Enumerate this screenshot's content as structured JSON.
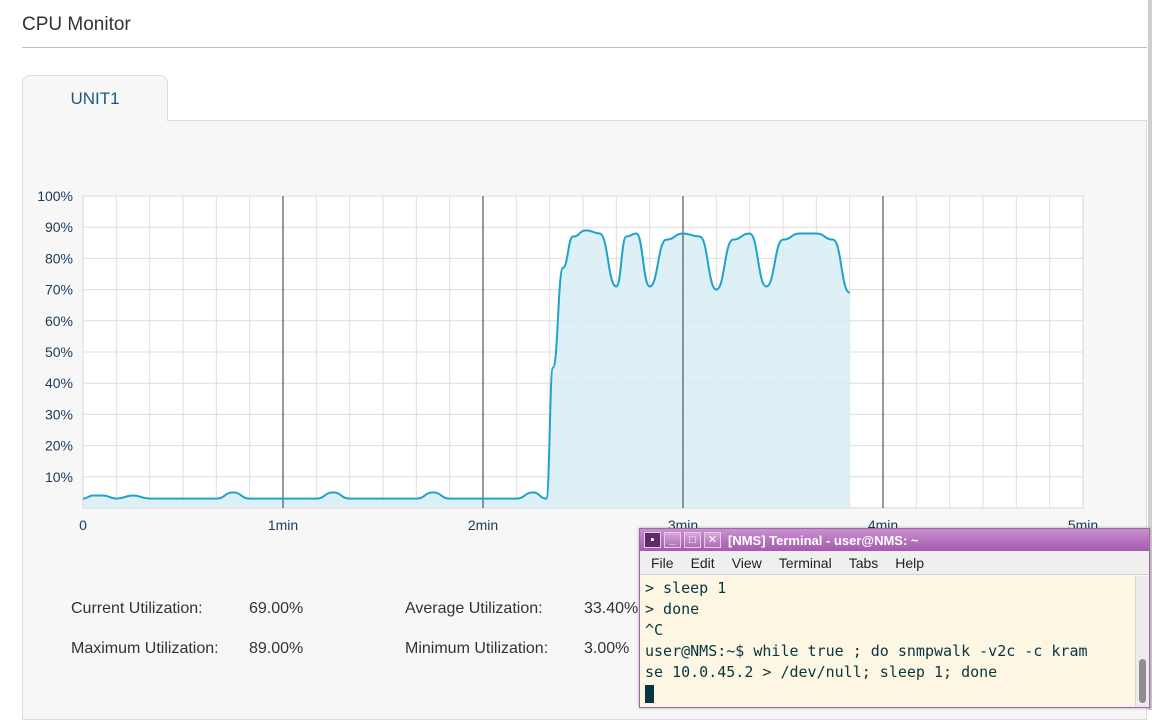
{
  "page": {
    "title": "CPU Monitor"
  },
  "tabs": [
    {
      "label": "UNIT1",
      "active": true
    }
  ],
  "chart_data": {
    "type": "area",
    "title": "",
    "xlabel": "",
    "ylabel": "",
    "x_unit": "seconds",
    "xlim": [
      0,
      300
    ],
    "ylim": [
      0,
      100
    ],
    "y_ticks": [
      "100%",
      "90%",
      "80%",
      "70%",
      "60%",
      "50%",
      "40%",
      "30%",
      "20%",
      "10%"
    ],
    "x_ticks": [
      "0",
      "1min",
      "2min",
      "3min",
      "4min",
      "5min"
    ],
    "grid": true,
    "color": "#1fa3c9",
    "fill": "#d6edf5",
    "x": [
      0,
      3,
      6,
      10,
      15,
      20,
      25,
      30,
      40,
      45,
      50,
      55,
      60,
      70,
      75,
      80,
      85,
      90,
      100,
      105,
      110,
      115,
      120,
      130,
      135,
      139,
      141,
      144,
      147,
      151,
      155,
      160,
      163,
      166,
      170,
      175,
      180,
      185,
      190,
      195,
      200,
      205,
      210,
      215,
      220,
      225,
      230
    ],
    "y": [
      3,
      4,
      4,
      3,
      4,
      3,
      3,
      3,
      3,
      5,
      3,
      3,
      3,
      3,
      5,
      3,
      3,
      3,
      3,
      5,
      3,
      3,
      3,
      3,
      5,
      3,
      45,
      77,
      87,
      89,
      88,
      71,
      87,
      88,
      71,
      86,
      88,
      87,
      70,
      86,
      88,
      71,
      86,
      88,
      88,
      86,
      69
    ],
    "series": [
      {
        "values_ref": "y"
      }
    ]
  },
  "stats": {
    "current_label": "Current Utilization:",
    "current_value": "69.00%",
    "average_label": "Average Utilization:",
    "average_value": "33.40%",
    "maximum_label": "Maximum Utilization:",
    "maximum_value": "89.00%",
    "minimum_label": "Minimum Utilization:",
    "minimum_value": "3.00%"
  },
  "terminal": {
    "window_title": "[NMS] Terminal - user@NMS: ~",
    "title_buttons": [
      "app-icon",
      "minimize-icon",
      "maximize-icon",
      "close-icon"
    ],
    "menu": [
      "File",
      "Edit",
      "View",
      "Terminal",
      "Tabs",
      "Help"
    ],
    "lines": [
      "> sleep 1",
      "> done",
      "^C",
      "user@NMS:~$ while true ; do snmpwalk -v2c -c kram",
      "se 10.0.45.2 > /dev/null; sleep 1; done"
    ],
    "colors": {
      "background": "#fdf6e3",
      "text": "#073642",
      "titlebar": "#b26fbb"
    }
  }
}
